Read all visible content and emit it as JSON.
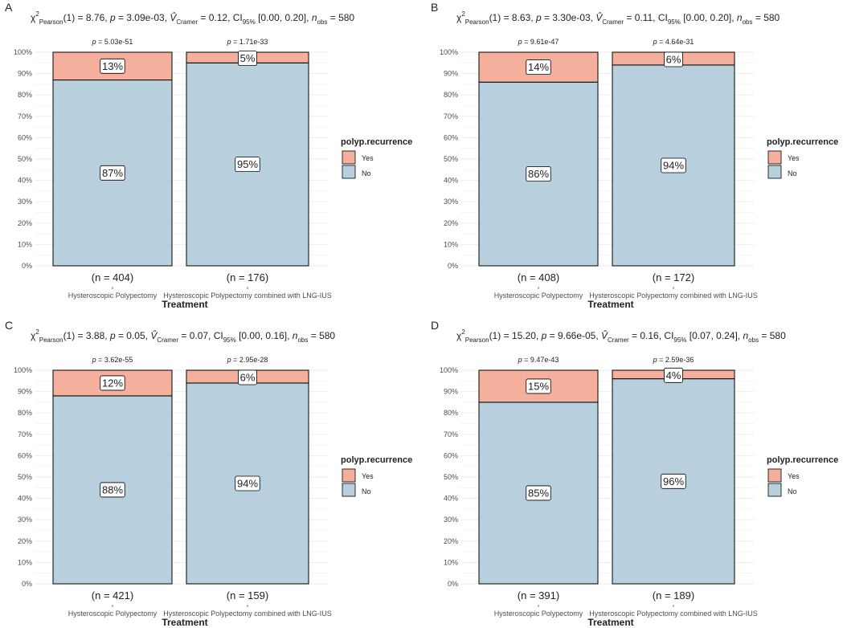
{
  "chart_data": [
    {
      "panel": "A",
      "type": "bar",
      "stacked": true,
      "subtitle": {
        "stat_value": "8.76",
        "p_value": "3.09e-03",
        "v_cramer": "0.12",
        "ci": "[0.00, 0.20]",
        "n_obs": "580"
      },
      "xlabel": "Treatment",
      "categories": [
        "Hysteroscopic Polypectomy",
        "Hysteroscopic Polypectomy combined with LNG-IUS"
      ],
      "series": [
        {
          "name": "No",
          "values": [
            87,
            95
          ],
          "labels": [
            "87%",
            "95%"
          ]
        },
        {
          "name": "Yes",
          "values": [
            13,
            5
          ],
          "labels": [
            "13%",
            "5%"
          ]
        }
      ],
      "p_labels": [
        "5.03e-51",
        "1.71e-33"
      ],
      "n_labels": [
        "(n = 404)",
        "(n = 176)"
      ],
      "ylim": [
        0,
        100
      ]
    },
    {
      "panel": "B",
      "type": "bar",
      "stacked": true,
      "subtitle": {
        "stat_value": "8.63",
        "p_value": "3.30e-03",
        "v_cramer": "0.11",
        "ci": "[0.00, 0.20]",
        "n_obs": "580"
      },
      "xlabel": "Treatment",
      "categories": [
        "Hysteroscopic Polypectomy",
        "Hysteroscopic Polypectomy combined with LNG-IUS"
      ],
      "series": [
        {
          "name": "No",
          "values": [
            86,
            94
          ],
          "labels": [
            "86%",
            "94%"
          ]
        },
        {
          "name": "Yes",
          "values": [
            14,
            6
          ],
          "labels": [
            "14%",
            "6%"
          ]
        }
      ],
      "p_labels": [
        "9.61e-47",
        "4.64e-31"
      ],
      "n_labels": [
        "(n = 408)",
        "(n = 172)"
      ],
      "ylim": [
        0,
        100
      ]
    },
    {
      "panel": "C",
      "type": "bar",
      "stacked": true,
      "subtitle": {
        "stat_value": "3.88",
        "p_value": "0.05",
        "v_cramer": "0.07",
        "ci": "[0.00, 0.16]",
        "n_obs": "580"
      },
      "xlabel": "Treatment",
      "categories": [
        "Hysteroscopic Polypectomy",
        "Hysteroscopic Polypectomy combined with LNG-IUS"
      ],
      "series": [
        {
          "name": "No",
          "values": [
            88,
            94
          ],
          "labels": [
            "88%",
            "94%"
          ]
        },
        {
          "name": "Yes",
          "values": [
            12,
            6
          ],
          "labels": [
            "12%",
            "6%"
          ]
        }
      ],
      "p_labels": [
        "3.62e-55",
        "2.95e-28"
      ],
      "n_labels": [
        "(n = 421)",
        "(n = 159)"
      ],
      "ylim": [
        0,
        100
      ]
    },
    {
      "panel": "D",
      "type": "bar",
      "stacked": true,
      "subtitle": {
        "stat_value": "15.20",
        "p_value": "9.66e-05",
        "v_cramer": "0.16",
        "ci": "[0.07, 0.24]",
        "n_obs": "580"
      },
      "xlabel": "Treatment",
      "categories": [
        "Hysteroscopic Polypectomy",
        "Hysteroscopic Polypectomy combined with LNG-IUS"
      ],
      "series": [
        {
          "name": "No",
          "values": [
            85,
            96
          ],
          "labels": [
            "85%",
            "96%"
          ]
        },
        {
          "name": "Yes",
          "values": [
            15,
            4
          ],
          "labels": [
            "15%",
            "4%"
          ]
        }
      ],
      "p_labels": [
        "9.47e-43",
        "2.59e-36"
      ],
      "n_labels": [
        "(n = 391)",
        "(n = 189)"
      ],
      "ylim": [
        0,
        100
      ]
    }
  ],
  "labels": {
    "stat_name": "Pearson",
    "df": "(1)",
    "v_sub": "Cramer",
    "ci_label": "CI",
    "ci_sub": "95%",
    "n_sub": "obs",
    "yticks": [
      "0%",
      "10%",
      "20%",
      "30%",
      "40%",
      "50%",
      "60%",
      "70%",
      "80%",
      "90%",
      "100%"
    ],
    "legend_title": "polyp.recurrence",
    "legend_items": [
      "Yes",
      "No"
    ]
  },
  "colors": {
    "no": "#b8cfde",
    "yes": "#f4b09d",
    "grid": "#ebebeb",
    "text": "#222222",
    "tick_text": "#4d4d4d"
  }
}
